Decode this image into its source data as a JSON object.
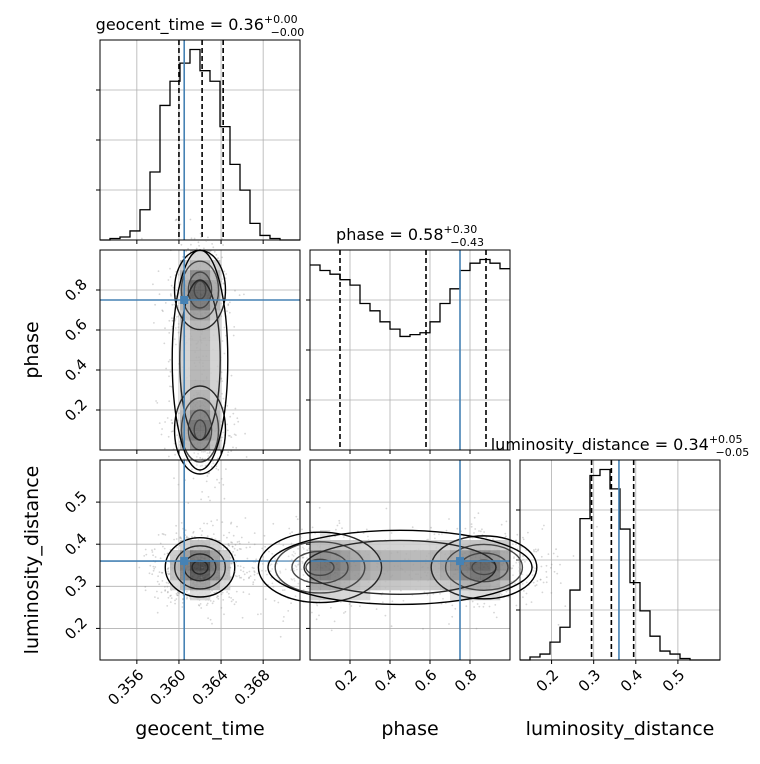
{
  "chart_data": {
    "type": "corner",
    "parameters": [
      {
        "name": "geocent_time",
        "axis_label": "geocent_time",
        "title_main": "geocent_time = 0.36",
        "title_sup": "+0.00",
        "title_sub": "−0.00",
        "range": [
          0.3525,
          0.3715
        ],
        "ticks": [
          0.356,
          0.36,
          0.364,
          0.368
        ],
        "tick_labels": [
          "0.356",
          "0.360",
          "0.364",
          "0.368"
        ],
        "quantiles": [
          0.36,
          0.3622,
          0.3642
        ],
        "truth": 0.3605,
        "hist": {
          "edges_start": 0.3525,
          "bin_width": 0.00095,
          "counts": [
            0,
            1,
            2,
            6,
            20,
            45,
            89,
            105,
            117,
            126,
            112,
            105,
            75,
            50,
            33,
            11,
            3,
            1,
            0,
            0
          ]
        }
      },
      {
        "name": "phase",
        "axis_label": "phase",
        "title_main": "phase = 0.58",
        "title_sup": "+0.30",
        "title_sub": "−0.43",
        "range": [
          0.0,
          1.0
        ],
        "ticks": [
          0.2,
          0.4,
          0.6,
          0.8
        ],
        "tick_labels": [
          "0.2",
          "0.4",
          "0.6",
          "0.8"
        ],
        "quantiles": [
          0.15,
          0.58,
          0.88
        ],
        "truth": 0.75,
        "hist": {
          "edges_start": 0.0,
          "bin_width": 0.05,
          "counts": [
            101,
            98,
            96,
            93,
            90,
            80,
            76,
            70,
            66,
            62,
            63,
            64,
            70,
            80,
            88,
            98,
            102,
            104,
            102,
            99
          ]
        }
      },
      {
        "name": "luminosity_distance",
        "axis_label": "luminosity_distance",
        "title_main": "luminosity_distance = 0.34",
        "title_sup": "+0.05",
        "title_sub": "−0.05",
        "range": [
          0.125,
          0.6
        ],
        "ticks": [
          0.2,
          0.3,
          0.4,
          0.5
        ],
        "tick_labels": [
          "0.2",
          "0.3",
          "0.4",
          "0.5"
        ],
        "quantiles": [
          0.295,
          0.342,
          0.395
        ],
        "truth": 0.36,
        "hist": {
          "edges_start": 0.125,
          "bin_width": 0.02375,
          "counts": [
            0,
            2,
            4,
            12,
            22,
            47,
            95,
            124,
            128,
            115,
            88,
            52,
            33,
            16,
            6,
            4,
            1,
            0,
            0,
            0
          ]
        }
      }
    ],
    "density_2d": [
      {
        "x": "geocent_time",
        "y": "phase",
        "modes": [
          {
            "x": 0.362,
            "y": 0.8,
            "sx": 0.0011,
            "sy": 0.09,
            "w": 1.0
          },
          {
            "x": 0.362,
            "y": 0.1,
            "sx": 0.0011,
            "sy": 0.1,
            "w": 0.85
          },
          {
            "x": 0.362,
            "y": 0.45,
            "sx": 0.0012,
            "sy": 0.25,
            "w": 0.35
          }
        ]
      },
      {
        "x": "geocent_time",
        "y": "luminosity_distance",
        "modes": [
          {
            "x": 0.362,
            "y": 0.345,
            "sx": 0.0015,
            "sy": 0.032,
            "w": 1.0
          }
        ]
      },
      {
        "x": "phase",
        "y": "luminosity_distance",
        "modes": [
          {
            "x": 0.05,
            "y": 0.345,
            "sx": 0.14,
            "sy": 0.038,
            "w": 0.85
          },
          {
            "x": 0.87,
            "y": 0.345,
            "sx": 0.12,
            "sy": 0.034,
            "w": 1.0
          },
          {
            "x": 0.45,
            "y": 0.345,
            "sx": 0.3,
            "sy": 0.04,
            "w": 0.45
          }
        ]
      }
    ],
    "colors": {
      "hist_line": "#000000",
      "quantile_line": "#000000",
      "truth_line": "#4682b4",
      "grid": "#b0b0b0",
      "density_dark": "#000000",
      "density_light": "#ffffff"
    },
    "grid": true,
    "legend": "none"
  }
}
